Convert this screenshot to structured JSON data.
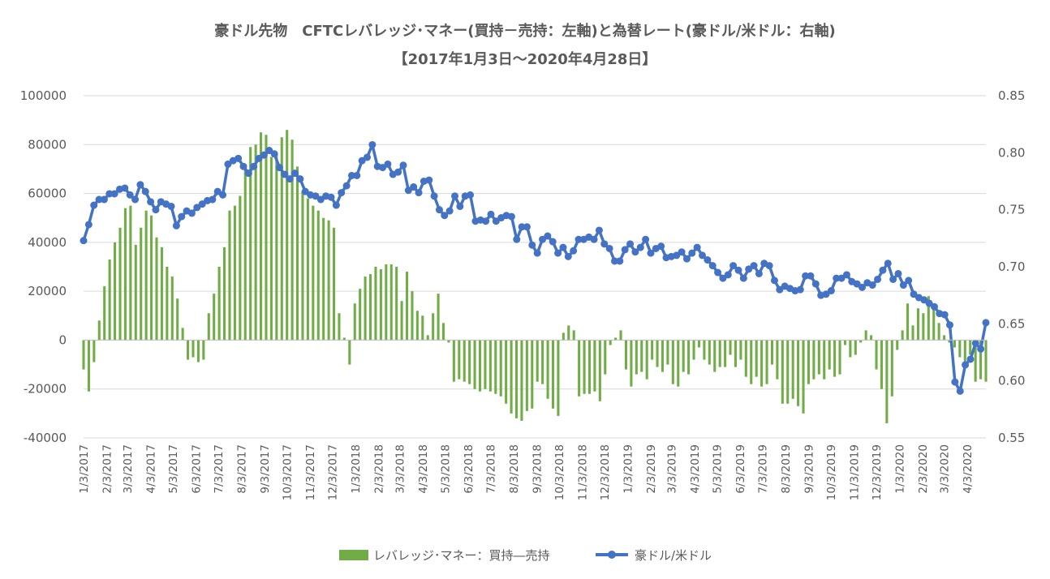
{
  "chart_data": {
    "type": "bar+line",
    "title": "豪ドル先物　CFTCレバレッジ･マネー(買持－売持：左軸)と為替レート(豪ドル/米ドル：右軸)",
    "subtitle": "【2017年1月3日～2020年4月28日】",
    "xlabel": "",
    "ylabel_left": "",
    "ylabel_right": "",
    "ylim_left": [
      -40000,
      100000
    ],
    "ylim_right": [
      0.55,
      0.85
    ],
    "yticks_left": [
      "-40000",
      "-20000",
      "0",
      "20000",
      "40000",
      "60000",
      "80000",
      "100000"
    ],
    "yticks_right": [
      "0.55",
      "0.60",
      "0.65",
      "0.70",
      "0.75",
      "0.80",
      "0.85"
    ],
    "xticks": [
      "1/3/2017",
      "2/3/2017",
      "3/3/2017",
      "4/3/2017",
      "5/3/2017",
      "6/3/2017",
      "7/3/2017",
      "8/3/2017",
      "9/3/2017",
      "10/3/2017",
      "11/3/2017",
      "12/3/2017",
      "1/3/2018",
      "2/3/2018",
      "3/3/2018",
      "4/3/2018",
      "5/3/2018",
      "6/3/2018",
      "7/3/2018",
      "8/3/2018",
      "9/3/2018",
      "10/3/2018",
      "11/3/2018",
      "12/3/2018",
      "1/3/2019",
      "2/3/2019",
      "3/3/2019",
      "4/3/2019",
      "5/3/2019",
      "6/3/2019",
      "7/3/2019",
      "8/3/2019",
      "9/3/2019",
      "10/3/2019",
      "11/3/2019",
      "12/3/2019",
      "1/3/2020",
      "2/3/2020",
      "3/3/2020",
      "4/3/2020"
    ],
    "x_start": "2017-01-03",
    "x_end": "2020-04-28",
    "grid": true,
    "legend_position": "bottom",
    "series": [
      {
        "name": "レバレッジ･マネー：買持―売持",
        "type": "bar",
        "axis": "left",
        "color": "#70AD47",
        "values": [
          -12000,
          -21000,
          -9000,
          8000,
          22000,
          33000,
          40000,
          46000,
          54000,
          55000,
          39000,
          46000,
          53000,
          51000,
          42000,
          38000,
          30000,
          26000,
          17000,
          5000,
          -8000,
          -7000,
          -9000,
          -8000,
          11000,
          19000,
          30000,
          38000,
          53000,
          55000,
          59000,
          72000,
          79000,
          80000,
          85000,
          84000,
          75000,
          76000,
          83000,
          86000,
          82000,
          71000,
          61000,
          58000,
          55000,
          53000,
          50000,
          49000,
          46000,
          11000,
          1000,
          -10000,
          15000,
          21000,
          26000,
          27000,
          30000,
          29000,
          31000,
          31000,
          30000,
          16000,
          28000,
          20000,
          12000,
          10000,
          2000,
          11000,
          19000,
          7000,
          -1000,
          -17000,
          -16000,
          -17000,
          -18000,
          -20000,
          -21000,
          -20000,
          -21000,
          -22000,
          -23000,
          -26000,
          -30000,
          -32000,
          -33000,
          -29000,
          -28000,
          -17000,
          -18000,
          -24000,
          -28000,
          -31000,
          3000,
          6000,
          4000,
          -23000,
          -22000,
          -22000,
          -21000,
          -25000,
          -14000,
          -2000,
          1000,
          4000,
          -12000,
          -19000,
          -14000,
          -13000,
          -16000,
          -8000,
          -11000,
          -13000,
          -10000,
          -18000,
          -19000,
          -13000,
          -14000,
          -8000,
          -3000,
          -8000,
          -10000,
          -13000,
          -11000,
          -11000,
          -6000,
          -11000,
          -8000,
          -15000,
          -18000,
          -15000,
          -19000,
          -18000,
          -10000,
          -16000,
          -26000,
          -26000,
          -24000,
          -27000,
          -30000,
          -18000,
          -16000,
          -14000,
          -16000,
          -12000,
          -15000,
          -14000,
          -2000,
          -7000,
          -6000,
          -1000,
          4000,
          2000,
          -12000,
          -20000,
          -34000,
          -23000,
          -4000,
          4000,
          15000,
          6000,
          13000,
          11000,
          18000,
          13000,
          7000,
          2000,
          -1000,
          -3000,
          -7000,
          -11000,
          -6000,
          -17000,
          -16000,
          -17000
        ]
      },
      {
        "name": "豪ドル/米ドル",
        "type": "line",
        "axis": "right",
        "color": "#4472C4",
        "values": [
          0.723,
          0.737,
          0.754,
          0.759,
          0.759,
          0.764,
          0.764,
          0.768,
          0.769,
          0.763,
          0.759,
          0.772,
          0.766,
          0.757,
          0.75,
          0.757,
          0.755,
          0.753,
          0.736,
          0.744,
          0.749,
          0.747,
          0.752,
          0.755,
          0.758,
          0.759,
          0.766,
          0.763,
          0.79,
          0.793,
          0.795,
          0.788,
          0.782,
          0.788,
          0.795,
          0.798,
          0.802,
          0.799,
          0.787,
          0.781,
          0.777,
          0.782,
          0.777,
          0.766,
          0.763,
          0.762,
          0.759,
          0.762,
          0.761,
          0.754,
          0.765,
          0.771,
          0.78,
          0.78,
          0.793,
          0.796,
          0.807,
          0.788,
          0.787,
          0.79,
          0.781,
          0.783,
          0.789,
          0.767,
          0.77,
          0.765,
          0.775,
          0.776,
          0.762,
          0.75,
          0.745,
          0.749,
          0.762,
          0.753,
          0.762,
          0.763,
          0.74,
          0.741,
          0.74,
          0.746,
          0.74,
          0.743,
          0.745,
          0.744,
          0.724,
          0.735,
          0.735,
          0.719,
          0.712,
          0.724,
          0.727,
          0.722,
          0.712,
          0.717,
          0.709,
          0.714,
          0.724,
          0.724,
          0.726,
          0.724,
          0.732,
          0.72,
          0.716,
          0.705,
          0.705,
          0.715,
          0.72,
          0.713,
          0.717,
          0.724,
          0.712,
          0.716,
          0.718,
          0.708,
          0.709,
          0.71,
          0.713,
          0.707,
          0.712,
          0.717,
          0.71,
          0.706,
          0.701,
          0.695,
          0.69,
          0.693,
          0.701,
          0.697,
          0.69,
          0.698,
          0.701,
          0.694,
          0.703,
          0.701,
          0.688,
          0.68,
          0.683,
          0.681,
          0.679,
          0.68,
          0.692,
          0.692,
          0.685,
          0.675,
          0.676,
          0.679,
          0.69,
          0.69,
          0.693,
          0.687,
          0.685,
          0.682,
          0.686,
          0.684,
          0.689,
          0.697,
          0.703,
          0.689,
          0.694,
          0.684,
          0.688,
          0.676,
          0.673,
          0.671,
          0.668,
          0.665,
          0.659,
          0.658,
          0.649,
          0.599,
          0.591,
          0.614,
          0.619,
          0.633,
          0.628,
          0.651
        ]
      }
    ]
  }
}
